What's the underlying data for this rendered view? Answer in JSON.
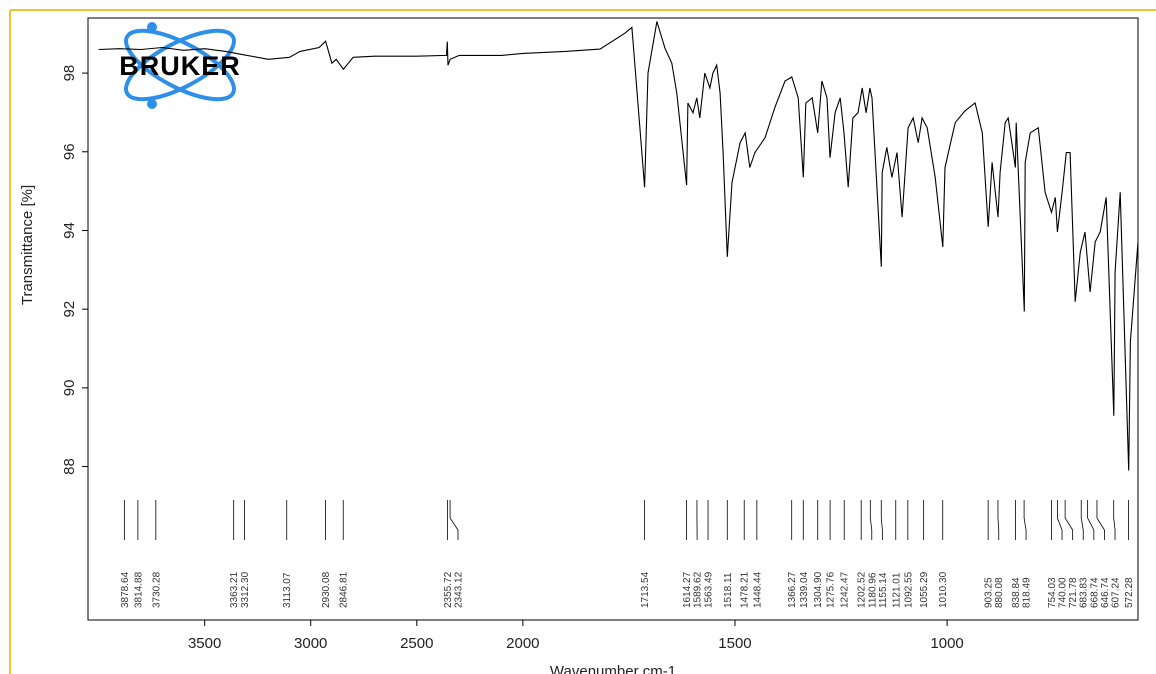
{
  "chart_data": {
    "type": "line",
    "logo": "BRUKER",
    "xlabel": "Wavenumber cm-1",
    "ylabel": "Transmittance [%]",
    "xlim": [
      4050,
      550
    ],
    "x_split": 2000,
    "ylim": [
      84.1,
      99.4
    ],
    "xticks": [
      3500,
      3000,
      2500,
      2000,
      1500,
      1000
    ],
    "yticks": [
      88,
      90,
      92,
      94,
      96,
      98
    ],
    "grid": false,
    "color": "#000000",
    "x": [
      4000,
      3900,
      3800,
      3700,
      3600,
      3500,
      3400,
      3300,
      3200,
      3100,
      3050,
      2960,
      2930,
      2900,
      2880,
      2846,
      2800,
      2700,
      2500,
      2360,
      2356,
      2353,
      2343,
      2300,
      2100,
      2000,
      1900,
      1818,
      1760,
      1743,
      1713,
      1705,
      1684,
      1665,
      1649,
      1637,
      1614,
      1611,
      1599,
      1590,
      1583,
      1571,
      1559,
      1552,
      1543,
      1535,
      1528,
      1518,
      1507,
      1488,
      1476,
      1465,
      1453,
      1429,
      1406,
      1382,
      1366,
      1351,
      1339,
      1333,
      1318,
      1305,
      1295,
      1283,
      1276,
      1264,
      1252,
      1243,
      1233,
      1222,
      1210,
      1200,
      1191,
      1182,
      1177,
      1155,
      1153,
      1142,
      1130,
      1118,
      1106,
      1092,
      1080,
      1068,
      1059,
      1047,
      1028,
      1010,
      1005,
      981,
      958,
      934,
      917,
      903,
      894,
      880,
      875,
      863,
      856,
      839,
      837,
      818,
      816,
      804,
      785,
      769,
      754,
      745,
      740,
      729,
      719,
      710,
      698,
      686,
      675,
      663,
      651,
      639,
      625,
      607,
      604,
      592,
      572,
      568,
      550
    ],
    "values": [
      98.6,
      98.62,
      98.6,
      98.65,
      98.58,
      98.62,
      98.55,
      98.45,
      98.35,
      98.4,
      98.55,
      98.65,
      98.81,
      98.25,
      98.35,
      98.1,
      98.4,
      98.43,
      98.43,
      98.45,
      98.8,
      98.2,
      98.35,
      98.45,
      98.45,
      98.5,
      98.55,
      98.61,
      99.01,
      99.16,
      95.1,
      98.0,
      99.31,
      98.63,
      98.25,
      97.49,
      95.15,
      97.24,
      96.99,
      97.37,
      96.86,
      98.0,
      97.62,
      98.0,
      98.2,
      97.49,
      95.98,
      93.33,
      95.22,
      96.23,
      96.48,
      95.6,
      95.98,
      96.36,
      97.12,
      97.8,
      97.9,
      97.37,
      95.35,
      97.24,
      97.37,
      96.48,
      97.8,
      97.37,
      95.85,
      96.99,
      97.37,
      96.48,
      95.1,
      96.86,
      96.99,
      97.62,
      96.99,
      97.62,
      97.37,
      93.08,
      95.47,
      96.11,
      95.35,
      95.98,
      94.34,
      96.61,
      96.86,
      96.23,
      96.86,
      96.61,
      95.35,
      93.58,
      95.6,
      96.74,
      97.04,
      97.24,
      96.48,
      94.09,
      95.73,
      94.34,
      95.47,
      96.74,
      96.86,
      95.6,
      96.74,
      91.94,
      95.73,
      96.48,
      96.61,
      94.97,
      94.46,
      94.84,
      93.96,
      94.97,
      95.98,
      95.98,
      92.19,
      93.45,
      93.96,
      92.44,
      93.71,
      93.96,
      94.84,
      89.29,
      92.95,
      94.97,
      87.9,
      91.18,
      93.71
    ],
    "peaks": [
      3878.64,
      3814.88,
      {
        "value": 3730.28,
        "label": "3730.28"
      },
      3363.21,
      {
        "value": 3312.3,
        "label": "3312.30"
      },
      3113.07,
      2930.08,
      2846.81,
      2355.72,
      2343.12,
      1713.54,
      1614.27,
      1589.62,
      1563.49,
      1518.11,
      1478.21,
      1448.44,
      1366.27,
      1339.04,
      {
        "value": 1304.9,
        "label": "1304.90"
      },
      1275.76,
      1242.47,
      1202.52,
      1180.96,
      1155.14,
      1121.01,
      1092.55,
      1055.29,
      {
        "value": 1010.3,
        "label": "1010.30"
      },
      903.25,
      880.08,
      838.84,
      818.49,
      754.03,
      {
        "value": 740,
        "label": "740.00"
      },
      721.78,
      683.83,
      668.74,
      646.74,
      607.24,
      572.28
    ]
  }
}
